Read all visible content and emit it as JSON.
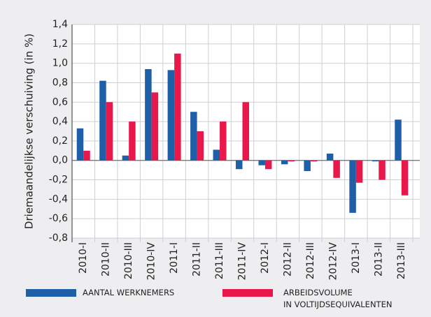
{
  "chart_data": {
    "type": "bar",
    "y_label": "Driemaandelijkse verschuiving (in %)",
    "categories": [
      "2010-I",
      "2010-II",
      "2010-III",
      "2010-IV",
      "2011-I",
      "2011-II",
      "2011-III",
      "2011-IV",
      "2012-I",
      "2012-II",
      "2012-III",
      "2012-IV",
      "2013-I",
      "2013-II",
      "2013-III"
    ],
    "series": [
      {
        "name": "AANTAL WERKNEMERS",
        "color": "#1f5fa8",
        "values": [
          0.33,
          0.82,
          0.05,
          0.94,
          0.93,
          0.5,
          0.11,
          -0.09,
          -0.05,
          -0.04,
          -0.11,
          0.07,
          -0.54,
          -0.01,
          0.42
        ]
      },
      {
        "name": "ARBEIDSVOLUME\nIN VOLTIJDSEQUIVALENTEN",
        "color": "#e8194a",
        "values": [
          0.1,
          0.6,
          0.4,
          0.7,
          1.1,
          0.3,
          0.4,
          0.6,
          -0.09,
          -0.01,
          -0.01,
          -0.18,
          -0.23,
          -0.2,
          -0.36
        ]
      }
    ],
    "ylim": [
      -0.8,
      1.4
    ],
    "yticks": [
      {
        "value": -0.8,
        "label": "-0,8"
      },
      {
        "value": -0.6,
        "label": "-0,6"
      },
      {
        "value": -0.4,
        "label": "-0,4"
      },
      {
        "value": -0.2,
        "label": "-0,2"
      },
      {
        "value": 0,
        "label": "0,0"
      },
      {
        "value": 0.2,
        "label": "0,2"
      },
      {
        "value": 0.4,
        "label": "0,4"
      },
      {
        "value": 0.6,
        "label": "0,6"
      },
      {
        "value": 0.8,
        "label": "0,8"
      },
      {
        "value": 1.0,
        "label": "1,0"
      },
      {
        "value": 1.2,
        "label": "1,2"
      },
      {
        "value": 1.4,
        "label": "1,4"
      }
    ],
    "grid": true
  }
}
